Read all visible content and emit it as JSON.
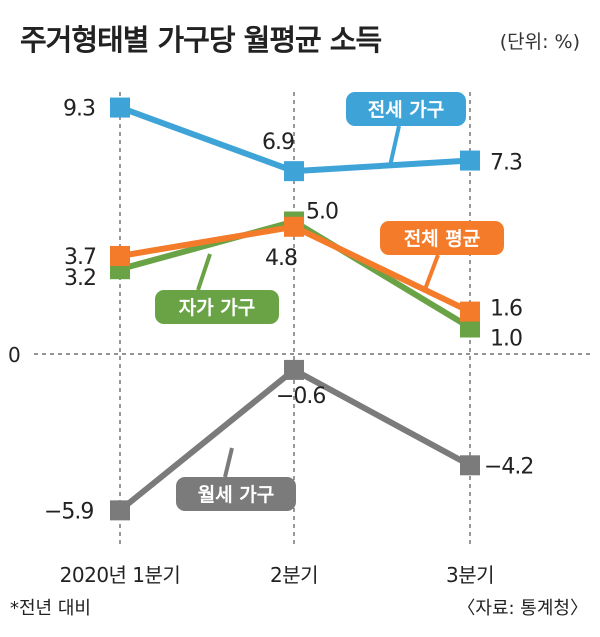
{
  "title": "주거형태별 가구당 월평균 소득",
  "unit": "(단위: %)",
  "footnote": "*전년 대비",
  "source": "〈자료: 통계청〉",
  "zero_label": "0",
  "chart_data": {
    "type": "line",
    "title": "주거형태별 가구당 월평균 소득",
    "unit": "%",
    "categories": [
      "2020년 1분기",
      "2분기",
      "3분기"
    ],
    "ylim": [
      -7,
      10
    ],
    "grid": "vertical dashed lines at each category",
    "legend": "inline labels next to each series",
    "series": [
      {
        "name": "전세 가구",
        "color": "#3ea3d6",
        "values": [
          9.3,
          6.9,
          7.3
        ],
        "labels": [
          "9.3",
          "6.9",
          "7.3"
        ]
      },
      {
        "name": "전체 평균",
        "color": "#f47b2a",
        "values": [
          3.7,
          4.8,
          1.6
        ],
        "labels": [
          "3.7",
          "4.8",
          "1.6"
        ]
      },
      {
        "name": "자가 가구",
        "color": "#6aa346",
        "values": [
          3.2,
          5.0,
          1.0
        ],
        "labels": [
          "3.2",
          "5.0",
          "1.0"
        ]
      },
      {
        "name": "월세 가구",
        "color": "#7b7b7b",
        "values": [
          -5.9,
          -0.6,
          -4.2
        ],
        "labels": [
          "−5.9",
          "−0.6",
          "−4.2"
        ]
      }
    ]
  }
}
